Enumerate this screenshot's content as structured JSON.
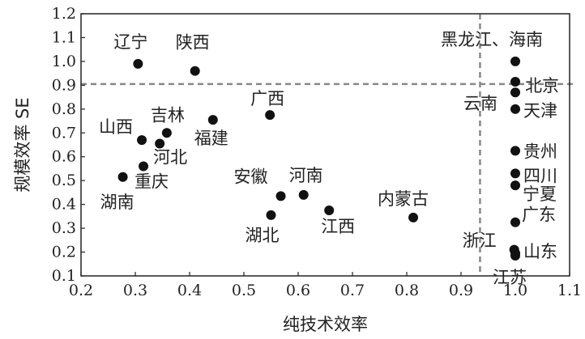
{
  "chart_data": {
    "type": "scatter",
    "title": "",
    "xlabel": "纯技术效率",
    "ylabel": "规模效率 SE",
    "xlim": [
      0.2,
      1.1
    ],
    "ylim": [
      0.1,
      1.2
    ],
    "xticks": [
      "0.2",
      "0.3",
      "0.4",
      "0.5",
      "0.6",
      "0.7",
      "0.8",
      "0.9",
      "1.0",
      "1.1"
    ],
    "yticks": [
      "0.1",
      "0.2",
      "0.3",
      "0.4",
      "0.5",
      "0.6",
      "0.7",
      "0.8",
      "0.9",
      "1.0",
      "1.1",
      "1.2"
    ],
    "grid": false,
    "reference_lines": [
      {
        "axis": "x",
        "value": 0.935,
        "style": "dashed",
        "color": "#888888"
      },
      {
        "axis": "y",
        "value": 0.905,
        "style": "dashed",
        "color": "#888888"
      }
    ],
    "marker_color": "#111111",
    "points": [
      {
        "label": "辽宁",
        "x": 0.305,
        "y": 0.99
      },
      {
        "label": "陕西",
        "x": 0.41,
        "y": 0.96
      },
      {
        "label": "黑龙江、海南",
        "x": 1.0,
        "y": 1.0
      },
      {
        "label": "北京",
        "x": 1.0,
        "y": 0.915
      },
      {
        "label": "云南",
        "x": 1.0,
        "y": 0.87
      },
      {
        "label": "天津",
        "x": 1.0,
        "y": 0.8
      },
      {
        "label": "广西",
        "x": 0.548,
        "y": 0.775
      },
      {
        "label": "吉林",
        "x": 0.358,
        "y": 0.7
      },
      {
        "label": "福建",
        "x": 0.443,
        "y": 0.755
      },
      {
        "label": "山西",
        "x": 0.312,
        "y": 0.67
      },
      {
        "label": "河北",
        "x": 0.345,
        "y": 0.655
      },
      {
        "label": "重庆",
        "x": 0.315,
        "y": 0.56
      },
      {
        "label": "湖南",
        "x": 0.277,
        "y": 0.515
      },
      {
        "label": "安徽",
        "x": 0.568,
        "y": 0.435
      },
      {
        "label": "河南",
        "x": 0.61,
        "y": 0.44
      },
      {
        "label": "湖北",
        "x": 0.55,
        "y": 0.355
      },
      {
        "label": "江西",
        "x": 0.657,
        "y": 0.375
      },
      {
        "label": "内蒙古",
        "x": 0.812,
        "y": 0.345
      },
      {
        "label": "贵州",
        "x": 1.0,
        "y": 0.625
      },
      {
        "label": "四川",
        "x": 1.0,
        "y": 0.53
      },
      {
        "label": "宁夏",
        "x": 1.0,
        "y": 0.48
      },
      {
        "label": "广东",
        "x": 1.0,
        "y": 0.325
      },
      {
        "label": "浙江",
        "x": 0.998,
        "y": 0.21
      },
      {
        "label": "山东",
        "x": 1.0,
        "y": 0.195
      },
      {
        "label": "江苏",
        "x": 1.0,
        "y": 0.185
      }
    ]
  }
}
